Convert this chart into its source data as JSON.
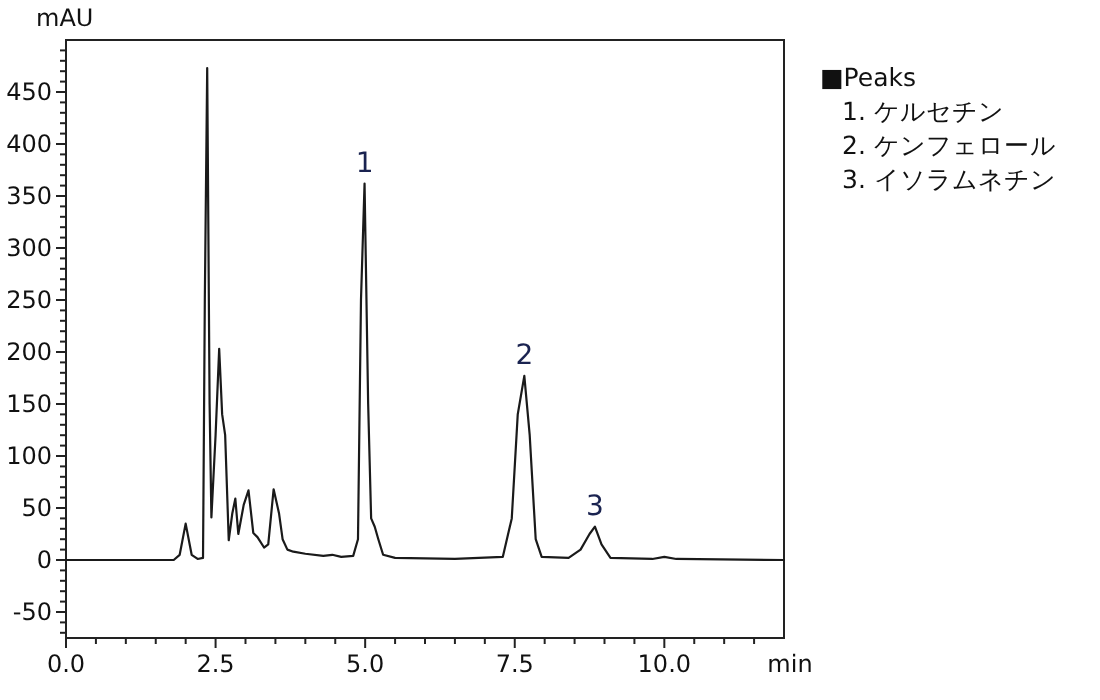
{
  "chart_data": {
    "type": "line",
    "xlabel": "min",
    "ylabel": "mAU",
    "x": [
      0,
      1.8,
      1.9,
      2.0,
      2.1,
      2.2,
      2.29,
      2.32,
      2.36,
      2.4,
      2.43,
      2.5,
      2.56,
      2.61,
      2.66,
      2.72,
      2.78,
      2.83,
      2.88,
      2.97,
      3.05,
      3.13,
      3.2,
      3.31,
      3.38,
      3.47,
      3.56,
      3.62,
      3.7,
      3.8,
      4.0,
      4.3,
      4.45,
      4.6,
      4.8,
      4.88,
      4.93,
      4.99,
      5.05,
      5.1,
      5.16,
      5.22,
      5.3,
      5.5,
      6.5,
      7.3,
      7.45,
      7.55,
      7.66,
      7.75,
      7.85,
      7.95,
      8.4,
      8.6,
      8.75,
      8.84,
      8.95,
      9.1,
      9.8,
      10.0,
      10.2,
      12
    ],
    "series": [
      {
        "color": "#1a1a1a",
        "values": [
          0,
          0,
          5,
          35,
          5,
          1,
          2,
          250,
          473,
          150,
          41,
          120,
          203,
          140,
          120,
          19,
          45,
          59,
          25,
          53,
          67,
          26,
          22,
          12,
          15,
          68,
          45,
          20,
          10,
          8,
          6,
          4,
          5,
          3,
          4,
          20,
          250,
          362,
          150,
          40,
          32,
          20,
          5,
          2,
          1,
          3,
          40,
          140,
          177,
          120,
          20,
          3,
          2,
          10,
          25,
          32,
          15,
          2,
          1,
          3,
          1,
          0
        ]
      }
    ],
    "xlim": [
      0,
      12
    ],
    "ylim": [
      -75,
      500
    ],
    "xticks": [
      {
        "value": 0,
        "label": "0.0"
      },
      {
        "value": 0.5,
        "label": null
      },
      {
        "value": 1,
        "label": null
      },
      {
        "value": 1.5,
        "label": null
      },
      {
        "value": 2,
        "label": null
      },
      {
        "value": 2.5,
        "label": "2.5"
      },
      {
        "value": 3,
        "label": null
      },
      {
        "value": 3.5,
        "label": null
      },
      {
        "value": 4,
        "label": null
      },
      {
        "value": 4.5,
        "label": null
      },
      {
        "value": 5,
        "label": "5.0"
      },
      {
        "value": 5.5,
        "label": null
      },
      {
        "value": 6,
        "label": null
      },
      {
        "value": 6.5,
        "label": null
      },
      {
        "value": 7,
        "label": null
      },
      {
        "value": 7.5,
        "label": "7.5"
      },
      {
        "value": 8,
        "label": null
      },
      {
        "value": 8.5,
        "label": null
      },
      {
        "value": 9,
        "label": null
      },
      {
        "value": 9.5,
        "label": null
      },
      {
        "value": 10,
        "label": "10.0"
      },
      {
        "value": 10.5,
        "label": null
      },
      {
        "value": 11,
        "label": null
      },
      {
        "value": 11.5,
        "label": null
      }
    ],
    "yticks": [
      {
        "value": -70,
        "label": null
      },
      {
        "value": -60,
        "label": null
      },
      -50,
      {
        "value": -40,
        "label": null
      },
      {
        "value": -30,
        "label": null
      },
      {
        "value": -20,
        "label": null
      },
      {
        "value": -10,
        "label": null
      },
      0,
      {
        "value": 10,
        "label": null
      },
      {
        "value": 20,
        "label": null
      },
      {
        "value": 30,
        "label": null
      },
      {
        "value": 40,
        "label": null
      },
      50,
      {
        "value": 60,
        "label": null
      },
      {
        "value": 70,
        "label": null
      },
      {
        "value": 80,
        "label": null
      },
      {
        "value": 90,
        "label": null
      },
      100,
      {
        "value": 110,
        "label": null
      },
      {
        "value": 120,
        "label": null
      },
      {
        "value": 130,
        "label": null
      },
      {
        "value": 140,
        "label": null
      },
      150,
      {
        "value": 160,
        "label": null
      },
      {
        "value": 170,
        "label": null
      },
      {
        "value": 180,
        "label": null
      },
      {
        "value": 190,
        "label": null
      },
      200,
      {
        "value": 210,
        "label": null
      },
      {
        "value": 220,
        "label": null
      },
      {
        "value": 230,
        "label": null
      },
      {
        "value": 240,
        "label": null
      },
      250,
      {
        "value": 260,
        "label": null
      },
      {
        "value": 270,
        "label": null
      },
      {
        "value": 280,
        "label": null
      },
      {
        "value": 290,
        "label": null
      },
      300,
      {
        "value": 310,
        "label": null
      },
      {
        "value": 320,
        "label": null
      },
      {
        "value": 330,
        "label": null
      },
      {
        "value": 340,
        "label": null
      },
      350,
      {
        "value": 360,
        "label": null
      },
      {
        "value": 370,
        "label": null
      },
      {
        "value": 380,
        "label": null
      },
      {
        "value": 390,
        "label": null
      },
      400,
      {
        "value": 410,
        "label": null
      },
      {
        "value": 420,
        "label": null
      },
      {
        "value": 430,
        "label": null
      },
      {
        "value": 440,
        "label": null
      },
      450,
      {
        "value": 460,
        "label": null
      },
      {
        "value": 470,
        "label": null
      },
      {
        "value": 480,
        "label": null
      },
      {
        "value": 490,
        "label": null
      }
    ],
    "grid": false,
    "marker": "none",
    "line_style": "solid",
    "annotations": [
      {
        "text": "1",
        "x": 4.99,
        "y": 362
      },
      {
        "text": "2",
        "x": 7.66,
        "y": 177
      },
      {
        "text": "3",
        "x": 8.84,
        "y": 32
      },
      "■Peaks",
      "1. ケルセチン",
      "2. ケンフェロール",
      "3. イソラムネチン"
    ]
  }
}
